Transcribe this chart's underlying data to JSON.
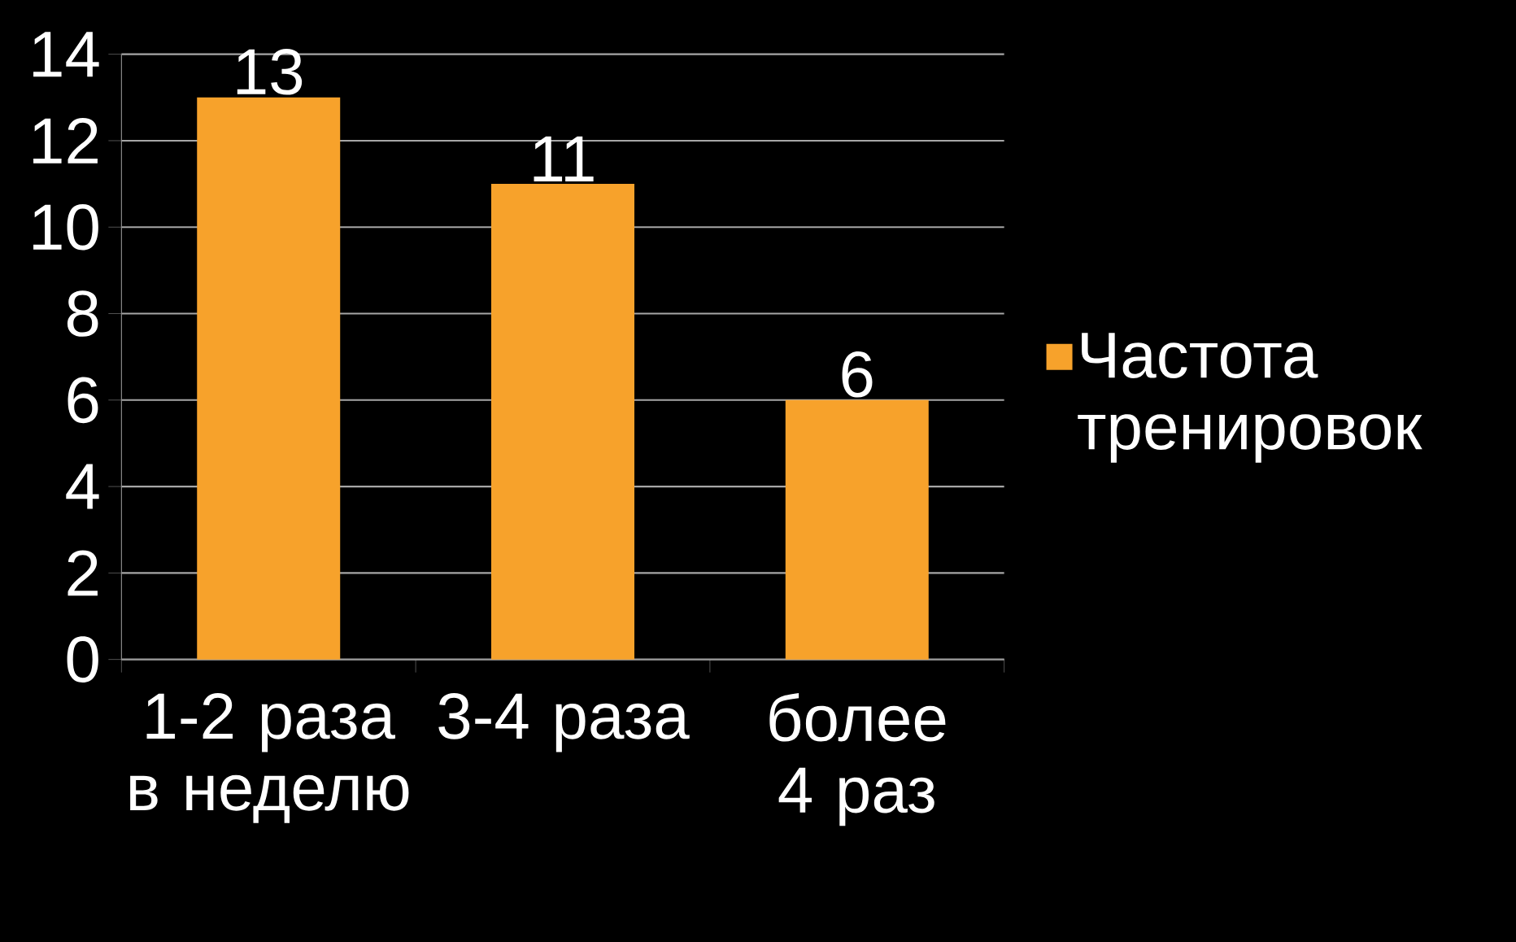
{
  "chart_data": {
    "type": "bar",
    "categories": [
      "1-2 раза в неделю",
      "3-4 раза",
      "более 4 раз"
    ],
    "series": [
      {
        "name": "Частота тренировок",
        "color": "#f7a22b",
        "values": [
          13,
          11,
          6
        ]
      }
    ],
    "ylim": [
      0,
      14
    ],
    "yticks": [
      0,
      2,
      4,
      6,
      8,
      10,
      12,
      14
    ],
    "grid": "y",
    "legend": "right",
    "data_labels": true
  }
}
